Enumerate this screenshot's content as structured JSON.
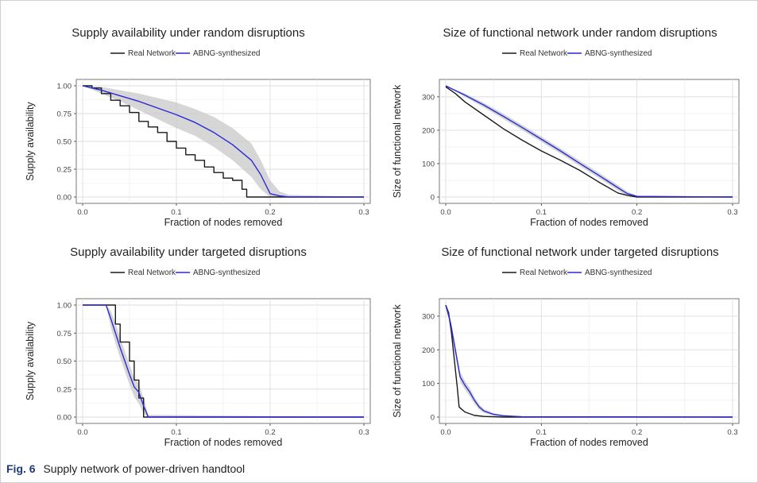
{
  "caption": {
    "label": "Fig. 6",
    "text": "Supply network of power-driven handtool"
  },
  "colors": {
    "real": "#1a1a1a",
    "synth": "#2a2ad4",
    "band": "#c8c8c8",
    "grid": "#ebebeb",
    "frame": "#555555"
  },
  "chart_data": [
    {
      "type": "line",
      "title": "Supply availability under random disruptions",
      "xlabel": "Fraction of nodes removed",
      "ylabel": "Supply availability",
      "xlim": [
        0,
        0.3
      ],
      "ylim": [
        0,
        1
      ],
      "xticks": [
        "0.0",
        "0.1",
        "0.2",
        "0.3"
      ],
      "yticks": [
        "0.00",
        "0.25",
        "0.50",
        "0.75",
        "1.00"
      ],
      "legend": "top",
      "grid": true,
      "series": [
        {
          "name": "Real Network",
          "color": "#1a1a1a",
          "x": [
            0,
            0.01,
            0.02,
            0.03,
            0.04,
            0.05,
            0.06,
            0.07,
            0.08,
            0.09,
            0.1,
            0.11,
            0.12,
            0.13,
            0.14,
            0.15,
            0.16,
            0.17,
            0.175,
            0.18,
            0.3
          ],
          "y": [
            1.0,
            0.98,
            0.93,
            0.87,
            0.82,
            0.76,
            0.68,
            0.63,
            0.58,
            0.5,
            0.44,
            0.38,
            0.33,
            0.27,
            0.22,
            0.17,
            0.15,
            0.07,
            0.0,
            0.0,
            0.0
          ]
        },
        {
          "name": "ABNG-synthesized",
          "color": "#2a2ad4",
          "x": [
            0,
            0.02,
            0.04,
            0.06,
            0.08,
            0.1,
            0.12,
            0.14,
            0.16,
            0.18,
            0.19,
            0.2,
            0.21,
            0.22,
            0.3
          ],
          "y": [
            1.0,
            0.96,
            0.91,
            0.86,
            0.8,
            0.74,
            0.67,
            0.58,
            0.47,
            0.33,
            0.2,
            0.03,
            0.01,
            0.0,
            0.0
          ],
          "band_lower": [
            1.0,
            0.93,
            0.86,
            0.78,
            0.7,
            0.62,
            0.55,
            0.45,
            0.33,
            0.18,
            0.07,
            0.0,
            0.0,
            0.0,
            0.0
          ],
          "band_upper": [
            1.0,
            0.99,
            0.96,
            0.93,
            0.89,
            0.85,
            0.79,
            0.72,
            0.62,
            0.48,
            0.33,
            0.15,
            0.05,
            0.02,
            0.0
          ]
        }
      ]
    },
    {
      "type": "line",
      "title": "Size of functional network under random disruptions",
      "xlabel": "Fraction of nodes removed",
      "ylabel": "Size of functional network",
      "xlim": [
        0,
        0.3
      ],
      "ylim": [
        0,
        333
      ],
      "xticks": [
        "0.0",
        "0.1",
        "0.2",
        "0.3"
      ],
      "yticks": [
        "0",
        "100",
        "200",
        "300"
      ],
      "legend": "top",
      "grid": true,
      "series": [
        {
          "name": "Real Network",
          "color": "#1a1a1a",
          "x": [
            0,
            0.01,
            0.02,
            0.04,
            0.06,
            0.08,
            0.1,
            0.12,
            0.14,
            0.16,
            0.18,
            0.19,
            0.2,
            0.3
          ],
          "y": [
            330,
            310,
            285,
            245,
            205,
            170,
            138,
            110,
            80,
            45,
            12,
            5,
            0,
            0
          ]
        },
        {
          "name": "ABNG-synthesized",
          "color": "#2a2ad4",
          "x": [
            0,
            0.02,
            0.04,
            0.06,
            0.08,
            0.1,
            0.12,
            0.14,
            0.16,
            0.18,
            0.19,
            0.2,
            0.3
          ],
          "y": [
            333,
            305,
            275,
            242,
            208,
            173,
            138,
            101,
            65,
            28,
            10,
            2,
            0
          ],
          "band_lower": [
            333,
            300,
            268,
            234,
            200,
            165,
            130,
            93,
            57,
            20,
            4,
            0,
            0
          ],
          "band_upper": [
            333,
            310,
            282,
            250,
            216,
            181,
            146,
            109,
            73,
            36,
            16,
            4,
            0
          ]
        }
      ]
    },
    {
      "type": "line",
      "title": "Supply availability under targeted disruptions",
      "xlabel": "Fraction of nodes removed",
      "ylabel": "Supply availability",
      "xlim": [
        0,
        0.3
      ],
      "ylim": [
        0,
        1
      ],
      "xticks": [
        "0.0",
        "0.1",
        "0.2",
        "0.3"
      ],
      "yticks": [
        "0.00",
        "0.25",
        "0.50",
        "0.75",
        "1.00"
      ],
      "legend": "top",
      "grid": true,
      "series": [
        {
          "name": "Real Network",
          "color": "#1a1a1a",
          "x": [
            0,
            0.027,
            0.03,
            0.035,
            0.04,
            0.045,
            0.05,
            0.055,
            0.06,
            0.065,
            0.07,
            0.3
          ],
          "y": [
            1.0,
            1.0,
            1.0,
            0.83,
            0.67,
            0.67,
            0.5,
            0.33,
            0.17,
            0.0,
            0.0,
            0.0
          ]
        },
        {
          "name": "ABNG-synthesized",
          "color": "#2a2ad4",
          "x": [
            0,
            0.025,
            0.03,
            0.035,
            0.04,
            0.045,
            0.05,
            0.055,
            0.06,
            0.065,
            0.07,
            0.3
          ],
          "y": [
            1.0,
            1.0,
            0.88,
            0.75,
            0.62,
            0.5,
            0.38,
            0.27,
            0.22,
            0.1,
            0.0,
            0.0
          ],
          "band_lower": [
            1.0,
            1.0,
            0.8,
            0.66,
            0.53,
            0.41,
            0.29,
            0.18,
            0.12,
            0.03,
            0.0,
            0.0
          ],
          "band_upper": [
            1.0,
            1.0,
            0.95,
            0.84,
            0.71,
            0.59,
            0.47,
            0.35,
            0.3,
            0.17,
            0.02,
            0.0
          ]
        }
      ]
    },
    {
      "type": "line",
      "title": "Size of functional network under targeted disruptions",
      "xlabel": "Fraction of nodes removed",
      "ylabel": "Size of functional network",
      "xlim": [
        0,
        0.3
      ],
      "ylim": [
        0,
        333
      ],
      "xticks": [
        "0.0",
        "0.1",
        "0.2",
        "0.3"
      ],
      "yticks": [
        "0",
        "100",
        "200",
        "300"
      ],
      "legend": "top",
      "grid": true,
      "series": [
        {
          "name": "Real Network",
          "color": "#1a1a1a",
          "x": [
            0,
            0.003,
            0.006,
            0.009,
            0.012,
            0.014,
            0.016,
            0.02,
            0.025,
            0.03,
            0.04,
            0.06,
            0.3
          ],
          "y": [
            333,
            310,
            250,
            170,
            90,
            30,
            25,
            15,
            10,
            5,
            2,
            0,
            0
          ]
        },
        {
          "name": "ABNG-synthesized",
          "color": "#2a2ad4",
          "x": [
            0,
            0.005,
            0.01,
            0.015,
            0.02,
            0.025,
            0.03,
            0.035,
            0.04,
            0.05,
            0.06,
            0.08,
            0.3
          ],
          "y": [
            333,
            280,
            200,
            120,
            95,
            75,
            50,
            30,
            18,
            8,
            4,
            1,
            0
          ],
          "band_lower": [
            333,
            270,
            185,
            105,
            82,
            62,
            40,
            22,
            12,
            4,
            1,
            0,
            0
          ],
          "band_upper": [
            333,
            292,
            215,
            135,
            108,
            88,
            60,
            38,
            24,
            12,
            6,
            2,
            0
          ]
        }
      ]
    }
  ]
}
